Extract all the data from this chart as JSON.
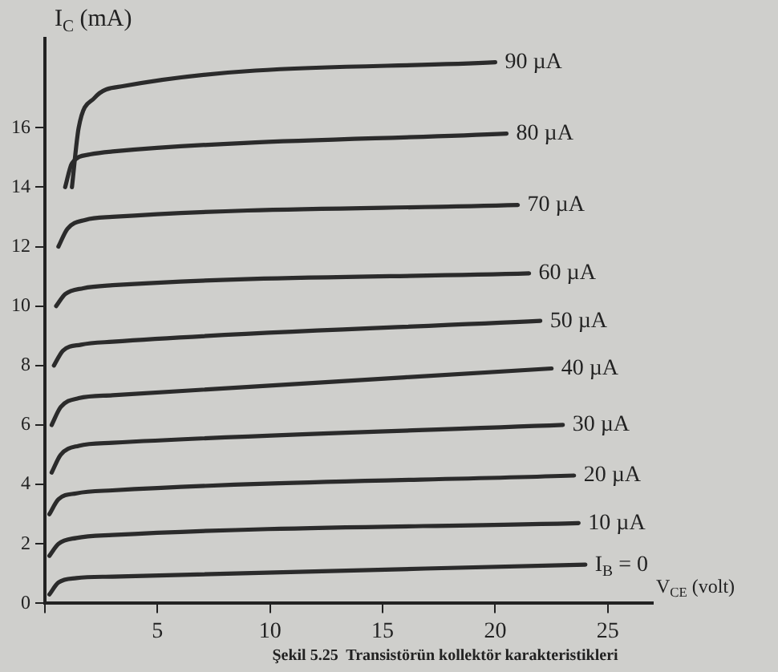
{
  "chart_data": {
    "type": "line",
    "ylabel": "I$_{C}$ (mA)",
    "xlabel": "V$_{CE}$ (volt)",
    "annotations": [
      "Şekil 5.25  Transistörün kollektör karakteristikleri"
    ],
    "xlim": [
      0,
      27
    ],
    "ylim": [
      0,
      19
    ],
    "xticks": [
      {
        "value": 0,
        "label": null
      },
      5,
      10,
      15,
      20,
      25
    ],
    "yticks": [
      0,
      2,
      4,
      6,
      8,
      10,
      12,
      14,
      16
    ],
    "grid": false,
    "legend": false,
    "marker": "none",
    "line_style": "solid",
    "series": [
      {
        "name": "90 µA",
        "color": "#2b2b2b",
        "x": [
          1.2,
          1.5,
          2.2,
          3.5,
          20
        ],
        "values": [
          14,
          16,
          17,
          17.4,
          18.2
        ]
      },
      {
        "name": "80 µA",
        "color": "#2b2b2b",
        "x": [
          0.9,
          1.2,
          2,
          3,
          20.5
        ],
        "values": [
          14,
          14.8,
          15.1,
          15.2,
          15.8
        ]
      },
      {
        "name": "70 µA",
        "color": "#2b2b2b",
        "x": [
          0.6,
          1,
          1.8,
          3,
          21
        ],
        "values": [
          12,
          12.6,
          12.9,
          13,
          13.4
        ]
      },
      {
        "name": "60 µA",
        "color": "#2b2b2b",
        "x": [
          0.5,
          0.9,
          1.7,
          3,
          21.5
        ],
        "values": [
          10,
          10.4,
          10.6,
          10.7,
          11.1
        ]
      },
      {
        "name": "50 µA",
        "color": "#2b2b2b",
        "x": [
          0.4,
          0.8,
          1.6,
          3,
          22
        ],
        "values": [
          8,
          8.5,
          8.7,
          8.8,
          9.5
        ]
      },
      {
        "name": "40 µA",
        "color": "#2b2b2b",
        "x": [
          0.3,
          0.7,
          1.5,
          3,
          22.5
        ],
        "values": [
          6,
          6.6,
          6.9,
          7,
          7.9
        ]
      },
      {
        "name": "30 µA",
        "color": "#2b2b2b",
        "x": [
          0.3,
          0.7,
          1.5,
          3,
          23
        ],
        "values": [
          4.4,
          5,
          5.3,
          5.4,
          6
        ]
      },
      {
        "name": "20 µA",
        "color": "#2b2b2b",
        "x": [
          0.2,
          0.6,
          1.4,
          3,
          23.5
        ],
        "values": [
          3,
          3.5,
          3.7,
          3.8,
          4.3
        ]
      },
      {
        "name": "10 µA",
        "color": "#2b2b2b",
        "x": [
          0.2,
          0.6,
          1.4,
          3,
          23.7
        ],
        "values": [
          1.6,
          2,
          2.2,
          2.3,
          2.7
        ]
      },
      {
        "name": "I$_{B}$ = 0",
        "color": "#2b2b2b",
        "x": [
          0.2,
          0.6,
          1.4,
          3,
          24
        ],
        "values": [
          0.3,
          0.7,
          0.85,
          0.9,
          1.3
        ]
      }
    ]
  }
}
